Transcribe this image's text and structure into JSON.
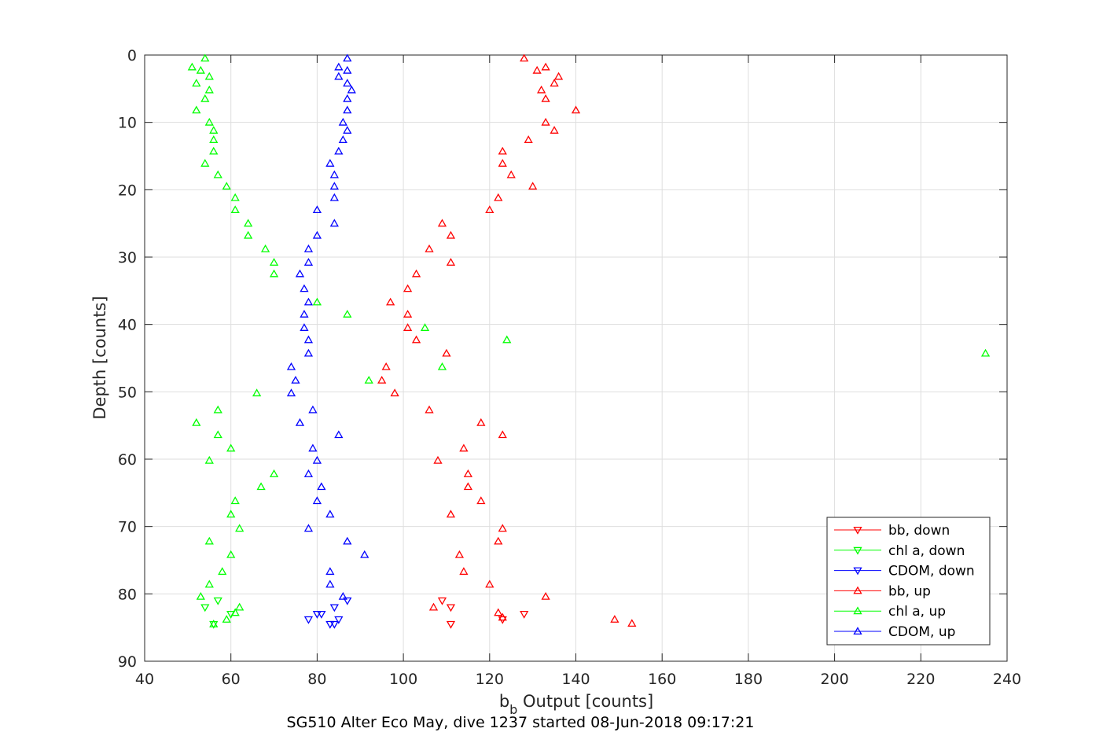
{
  "chart_data": {
    "type": "scatter",
    "xlabel_main": "b",
    "xlabel_sub": "b",
    "xlabel_rest": " Output [counts]",
    "ylabel": "Depth [counts]",
    "caption": "SG510 Alter Eco May, dive 1237 started 08-Jun-2018 09:17:21",
    "xlim": [
      40,
      240
    ],
    "ylim": [
      0,
      90
    ],
    "y_reversed": true,
    "grid": true,
    "xticks": [
      "40",
      "60",
      "80",
      "100",
      "120",
      "140",
      "160",
      "180",
      "200",
      "220",
      "240"
    ],
    "yticks": [
      "0",
      "10",
      "20",
      "30",
      "40",
      "50",
      "60",
      "70",
      "80",
      "90"
    ],
    "legend_position": "bottom-right",
    "series": [
      {
        "name": "bb, down",
        "color": "#ff0000",
        "marker": "triangle-down",
        "points": [
          [
            109,
            81
          ],
          [
            111,
            82
          ],
          [
            128,
            83
          ],
          [
            123,
            83.8
          ],
          [
            111,
            84.5
          ]
        ]
      },
      {
        "name": "chl a, down",
        "color": "#00ff00",
        "marker": "triangle-down",
        "points": [
          [
            57,
            81
          ],
          [
            54,
            82
          ],
          [
            60,
            83
          ],
          [
            56,
            84.5
          ]
        ]
      },
      {
        "name": "CDOM, down",
        "color": "#0000ff",
        "marker": "triangle-down",
        "points": [
          [
            87,
            81
          ],
          [
            84,
            82
          ],
          [
            80,
            83
          ],
          [
            81,
            83
          ],
          [
            85,
            83.8
          ],
          [
            78,
            83.8
          ],
          [
            83,
            84.5
          ],
          [
            84,
            84.5
          ]
        ]
      },
      {
        "name": "bb, up",
        "color": "#ff0000",
        "marker": "triangle-up",
        "points": [
          [
            128,
            0.5
          ],
          [
            133,
            1.8
          ],
          [
            131,
            2.3
          ],
          [
            136,
            3.2
          ],
          [
            135,
            4.2
          ],
          [
            132,
            5.2
          ],
          [
            133,
            6.5
          ],
          [
            140,
            8.2
          ],
          [
            133,
            10
          ],
          [
            135,
            11.2
          ],
          [
            129,
            12.6
          ],
          [
            123,
            14.3
          ],
          [
            123,
            16.1
          ],
          [
            125,
            17.8
          ],
          [
            130,
            19.5
          ],
          [
            122,
            21.2
          ],
          [
            120,
            23
          ],
          [
            109,
            25
          ],
          [
            111,
            26.8
          ],
          [
            106,
            28.8
          ],
          [
            111,
            30.8
          ],
          [
            103,
            32.5
          ],
          [
            101,
            34.7
          ],
          [
            97,
            36.7
          ],
          [
            101,
            38.5
          ],
          [
            101,
            40.5
          ],
          [
            103,
            42.3
          ],
          [
            110,
            44.3
          ],
          [
            96,
            46.3
          ],
          [
            95,
            48.3
          ],
          [
            98,
            50.2
          ],
          [
            106,
            52.7
          ],
          [
            118,
            54.6
          ],
          [
            123,
            56.4
          ],
          [
            114,
            58.4
          ],
          [
            108,
            60.2
          ],
          [
            115,
            62.2
          ],
          [
            115,
            64.1
          ],
          [
            118,
            66.2
          ],
          [
            111,
            68.2
          ],
          [
            123,
            70.3
          ],
          [
            122,
            72.2
          ],
          [
            113,
            74.2
          ],
          [
            114,
            76.7
          ],
          [
            120,
            78.6
          ],
          [
            133,
            80.4
          ],
          [
            107,
            82
          ],
          [
            122,
            82.8
          ],
          [
            123,
            83.5
          ],
          [
            149,
            83.8
          ],
          [
            153,
            84.4
          ]
        ]
      },
      {
        "name": "chl a, up",
        "color": "#00ff00",
        "marker": "triangle-up",
        "points": [
          [
            54,
            0.5
          ],
          [
            51,
            1.8
          ],
          [
            53,
            2.3
          ],
          [
            55,
            3.2
          ],
          [
            52,
            4.2
          ],
          [
            55,
            5.2
          ],
          [
            54,
            6.5
          ],
          [
            52,
            8.2
          ],
          [
            55,
            10
          ],
          [
            56,
            11.2
          ],
          [
            56,
            12.6
          ],
          [
            56,
            14.3
          ],
          [
            54,
            16.1
          ],
          [
            57,
            17.8
          ],
          [
            59,
            19.5
          ],
          [
            61,
            21.2
          ],
          [
            61,
            23
          ],
          [
            64,
            25
          ],
          [
            64,
            26.8
          ],
          [
            68,
            28.8
          ],
          [
            70,
            30.8
          ],
          [
            70,
            32.5
          ],
          [
            80,
            36.7
          ],
          [
            87,
            38.5
          ],
          [
            105,
            40.5
          ],
          [
            124,
            42.3
          ],
          [
            235,
            44.3
          ],
          [
            109,
            46.3
          ],
          [
            92,
            48.3
          ],
          [
            66,
            50.2
          ],
          [
            57,
            52.7
          ],
          [
            52,
            54.6
          ],
          [
            57,
            56.4
          ],
          [
            60,
            58.4
          ],
          [
            55,
            60.2
          ],
          [
            70,
            62.2
          ],
          [
            67,
            64.1
          ],
          [
            61,
            66.2
          ],
          [
            60,
            68.2
          ],
          [
            62,
            70.3
          ],
          [
            55,
            72.2
          ],
          [
            60,
            74.2
          ],
          [
            58,
            76.7
          ],
          [
            55,
            78.6
          ],
          [
            53,
            80.4
          ],
          [
            62,
            82
          ],
          [
            61,
            82.8
          ],
          [
            59,
            83.8
          ],
          [
            56,
            84.5
          ]
        ]
      },
      {
        "name": "CDOM, up",
        "color": "#0000ff",
        "marker": "triangle-up",
        "points": [
          [
            87,
            0.5
          ],
          [
            85,
            1.8
          ],
          [
            87,
            2.3
          ],
          [
            85,
            3.2
          ],
          [
            87,
            4.2
          ],
          [
            88,
            5.2
          ],
          [
            87,
            6.5
          ],
          [
            87,
            8.2
          ],
          [
            86,
            10
          ],
          [
            87,
            11.2
          ],
          [
            86,
            12.6
          ],
          [
            85,
            14.3
          ],
          [
            83,
            16.1
          ],
          [
            84,
            17.8
          ],
          [
            84,
            19.5
          ],
          [
            84,
            21.2
          ],
          [
            80,
            23
          ],
          [
            84,
            25
          ],
          [
            80,
            26.8
          ],
          [
            78,
            28.8
          ],
          [
            78,
            30.8
          ],
          [
            76,
            32.5
          ],
          [
            77,
            34.7
          ],
          [
            78,
            36.7
          ],
          [
            77,
            38.5
          ],
          [
            77,
            40.5
          ],
          [
            78,
            42.3
          ],
          [
            78,
            44.3
          ],
          [
            74,
            46.3
          ],
          [
            75,
            48.3
          ],
          [
            74,
            50.2
          ],
          [
            79,
            52.7
          ],
          [
            76,
            54.6
          ],
          [
            85,
            56.4
          ],
          [
            79,
            58.4
          ],
          [
            80,
            60.2
          ],
          [
            78,
            62.2
          ],
          [
            81,
            64.1
          ],
          [
            80,
            66.2
          ],
          [
            83,
            68.2
          ],
          [
            78,
            70.3
          ],
          [
            87,
            72.2
          ],
          [
            91,
            74.2
          ],
          [
            83,
            76.7
          ],
          [
            83,
            78.6
          ],
          [
            86,
            80.4
          ]
        ]
      }
    ]
  }
}
